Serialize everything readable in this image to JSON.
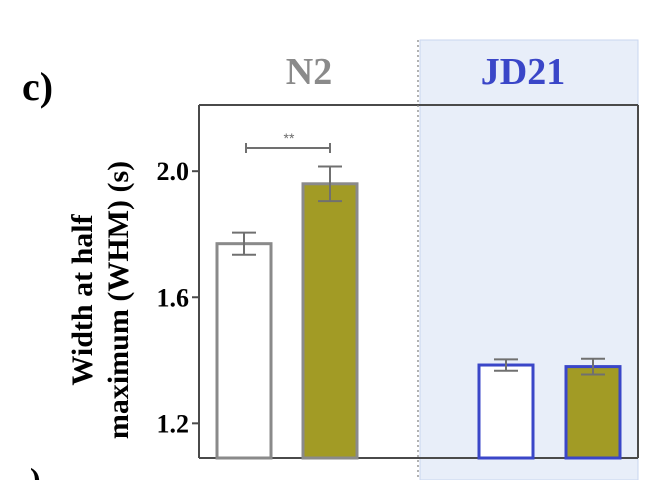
{
  "panel_label": "c)",
  "next_panel_fragment": ")",
  "colors": {
    "n2_text": "#8a8a8a",
    "jd21_text": "#3a46c8",
    "jd21_shade": "#e8eef9",
    "jd21_shade_border": "#c9d6ef",
    "n2_outline": "#8a8a8a",
    "jd21_outline": "#3a46c8",
    "olive_fill": "#a29b25",
    "white_fill": "#ffffff",
    "error_bar": "#707070",
    "axis": "#4a4a4a"
  },
  "chart_data": {
    "type": "bar",
    "ylabel_lines": [
      "Width at half",
      "maximum (WHM) (s)"
    ],
    "yticks": [
      2.0,
      1.6,
      1.2
    ],
    "ytick_labels": [
      "2.0",
      "1.6",
      "1.2"
    ],
    "ylim": [
      1.09,
      2.21
    ],
    "grid": false,
    "groups": [
      {
        "name": "N2",
        "bars": [
          {
            "fill": "white",
            "value": 1.77,
            "err": 0.035
          },
          {
            "fill": "olive",
            "value": 1.96,
            "err": 0.055
          }
        ],
        "significance": "**"
      },
      {
        "name": "JD21",
        "bars": [
          {
            "fill": "white",
            "value": 1.385,
            "err": 0.018
          },
          {
            "fill": "olive",
            "value": 1.38,
            "err": 0.025
          }
        ]
      }
    ]
  }
}
